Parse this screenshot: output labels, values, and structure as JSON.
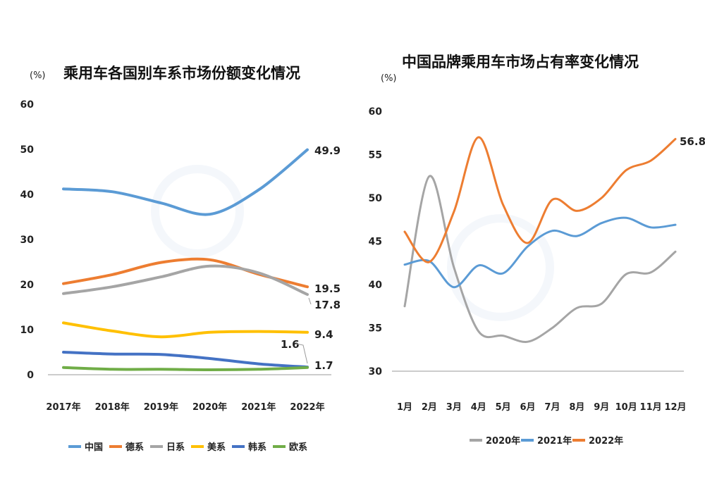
{
  "chart_data": [
    {
      "type": "line",
      "title": "乘用车各国别车系市场份额变化情况",
      "unit": "(%)",
      "ylim": [
        0,
        60
      ],
      "yticks": [
        "0",
        "10",
        "20",
        "30",
        "40",
        "50",
        "60"
      ],
      "categories": [
        "2017年",
        "2018年",
        "2019年",
        "2020年",
        "2021年",
        "2022年"
      ],
      "legend_position": "bottom",
      "series": [
        {
          "name": "中国",
          "color": "#5b9bd5",
          "values": [
            41.2,
            40.6,
            38.1,
            35.6,
            41.0,
            49.9
          ]
        },
        {
          "name": "德系",
          "color": "#ed7d31",
          "values": [
            20.2,
            22.2,
            24.9,
            25.5,
            22.3,
            19.5
          ]
        },
        {
          "name": "日系",
          "color": "#a5a5a5",
          "values": [
            18.0,
            19.5,
            21.7,
            24.1,
            22.6,
            17.8
          ]
        },
        {
          "name": "美系",
          "color": "#ffc000",
          "values": [
            11.5,
            9.7,
            8.4,
            9.4,
            9.6,
            9.4
          ]
        },
        {
          "name": "韩系",
          "color": "#4472c4",
          "values": [
            5.0,
            4.6,
            4.5,
            3.6,
            2.4,
            1.7
          ]
        },
        {
          "name": "欧系",
          "color": "#70ad47",
          "values": [
            1.6,
            1.2,
            1.2,
            1.1,
            1.2,
            1.6
          ]
        }
      ],
      "end_labels": [
        "49.9",
        "19.5",
        "17.8",
        "9.4",
        "1.6",
        "1.7"
      ]
    },
    {
      "type": "line",
      "title": "中国品牌乘用车市场占有率变化情况",
      "unit": "(%)",
      "ylim": [
        30,
        60
      ],
      "yticks": [
        "30",
        "35",
        "40",
        "45",
        "50",
        "55",
        "60"
      ],
      "categories": [
        "1月",
        "2月",
        "3月",
        "4月",
        "5月",
        "6月",
        "7月",
        "8月",
        "9月",
        "10月",
        "11月",
        "12月"
      ],
      "legend_position": "bottom",
      "series": [
        {
          "name": "2020年",
          "color": "#a5a5a5",
          "values": [
            37.5,
            52.5,
            42.0,
            34.6,
            34.1,
            33.4,
            35.0,
            37.3,
            37.8,
            41.2,
            41.4,
            43.8
          ]
        },
        {
          "name": "2021年",
          "color": "#5b9bd5",
          "values": [
            42.3,
            42.7,
            39.7,
            42.2,
            41.3,
            44.4,
            46.2,
            45.6,
            47.1,
            47.7,
            46.6,
            46.9
          ]
        },
        {
          "name": "2022年",
          "color": "#ed7d31",
          "values": [
            46.1,
            42.6,
            48.4,
            57.0,
            49.2,
            44.8,
            49.8,
            48.5,
            50.0,
            53.2,
            54.3,
            56.8
          ]
        }
      ],
      "end_labels": [
        "56.8"
      ]
    }
  ]
}
